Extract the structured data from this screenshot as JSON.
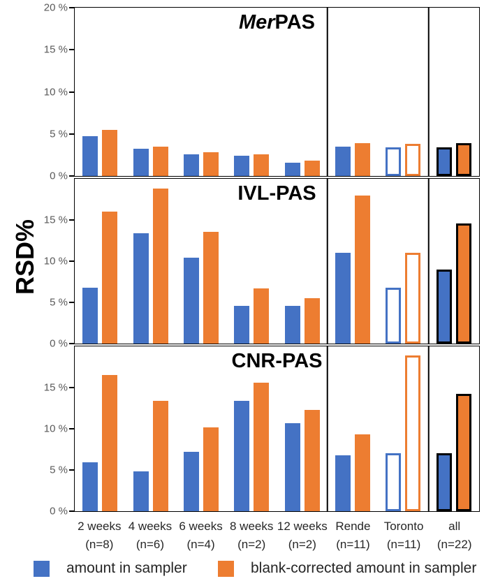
{
  "ylabel": "RSD%",
  "colors": {
    "series_amount": "#4472C4",
    "series_blank_corrected": "#ED7D31",
    "axis_text": "#595959",
    "category_text": "#262626",
    "border": "#000000"
  },
  "legend": {
    "items": [
      {
        "label": "amount in sampler",
        "color": "#4472C4"
      },
      {
        "label": "blank-corrected amount in sampler",
        "color": "#ED7D31"
      }
    ]
  },
  "categories": [
    {
      "line1": "2 weeks",
      "line2": "(n=8)"
    },
    {
      "line1": "4 weeks",
      "line2": "(n=6)"
    },
    {
      "line1": "6 weeks",
      "line2": "(n=4)"
    },
    {
      "line1": "8 weeks",
      "line2": "(n=2)"
    },
    {
      "line1": "12 weeks",
      "line2": "(n=2)"
    },
    {
      "line1": "Rende",
      "line2": "(n=11)"
    },
    {
      "line1": "Toronto",
      "line2": "(n=11)"
    },
    {
      "line1": "all",
      "line2": "(n=22)"
    }
  ],
  "bar_styles": [
    "fill",
    "fill",
    "fill",
    "fill",
    "fill",
    "fill",
    "outline",
    "outline-black"
  ],
  "sections": {
    "divider_positions_pct": [
      62.5,
      87.5
    ]
  },
  "chart_data": [
    {
      "type": "bar",
      "title": "MerPAS",
      "title_italic_prefix": "Mer",
      "title_rest": "PAS",
      "ylim": [
        0,
        20
      ],
      "grid": false,
      "yticks": [
        {
          "label": "20 %",
          "value": 20
        },
        {
          "label": "15 %",
          "value": 15
        },
        {
          "label": "10 %",
          "value": 10
        },
        {
          "label": "5 %",
          "value": 5
        },
        {
          "label": "0 %",
          "value": 0
        }
      ],
      "series": [
        {
          "name": "amount in sampler",
          "values": [
            4.7,
            3.2,
            2.6,
            2.4,
            1.6,
            3.5,
            3.4,
            3.4
          ]
        },
        {
          "name": "blank-corrected amount in sampler",
          "values": [
            5.5,
            3.5,
            2.8,
            2.6,
            1.8,
            3.9,
            3.8,
            3.9
          ]
        }
      ]
    },
    {
      "type": "bar",
      "title": "IVL-PAS",
      "title_italic_prefix": "",
      "title_rest": "IVL-PAS",
      "ylim": [
        0,
        20
      ],
      "grid": false,
      "yticks": [
        {
          "label": "15 %",
          "value": 15
        },
        {
          "label": "10 %",
          "value": 10
        },
        {
          "label": "5 %",
          "value": 5
        },
        {
          "label": "0 %",
          "value": 0
        }
      ],
      "series": [
        {
          "name": "amount in sampler",
          "values": [
            6.8,
            13.4,
            10.4,
            4.6,
            4.6,
            11.0,
            6.8,
            9.0
          ]
        },
        {
          "name": "blank-corrected amount in sampler",
          "values": [
            16.0,
            18.8,
            13.6,
            6.7,
            5.5,
            18.0,
            11.0,
            14.6
          ]
        }
      ]
    },
    {
      "type": "bar",
      "title": "CNR-PAS",
      "title_italic_prefix": "",
      "title_rest": "CNR-PAS",
      "ylim": [
        0,
        20
      ],
      "grid": false,
      "yticks": [
        {
          "label": "15 %",
          "value": 15
        },
        {
          "label": "10 %",
          "value": 10
        },
        {
          "label": "5 %",
          "value": 5
        },
        {
          "label": "0 %",
          "value": 0
        }
      ],
      "series": [
        {
          "name": "amount in sampler",
          "values": [
            5.9,
            4.8,
            7.2,
            13.4,
            10.7,
            6.8,
            7.0,
            7.0
          ]
        },
        {
          "name": "blank-corrected amount in sampler",
          "values": [
            16.5,
            13.4,
            10.2,
            15.6,
            12.3,
            9.3,
            18.9,
            14.2
          ]
        }
      ]
    }
  ]
}
